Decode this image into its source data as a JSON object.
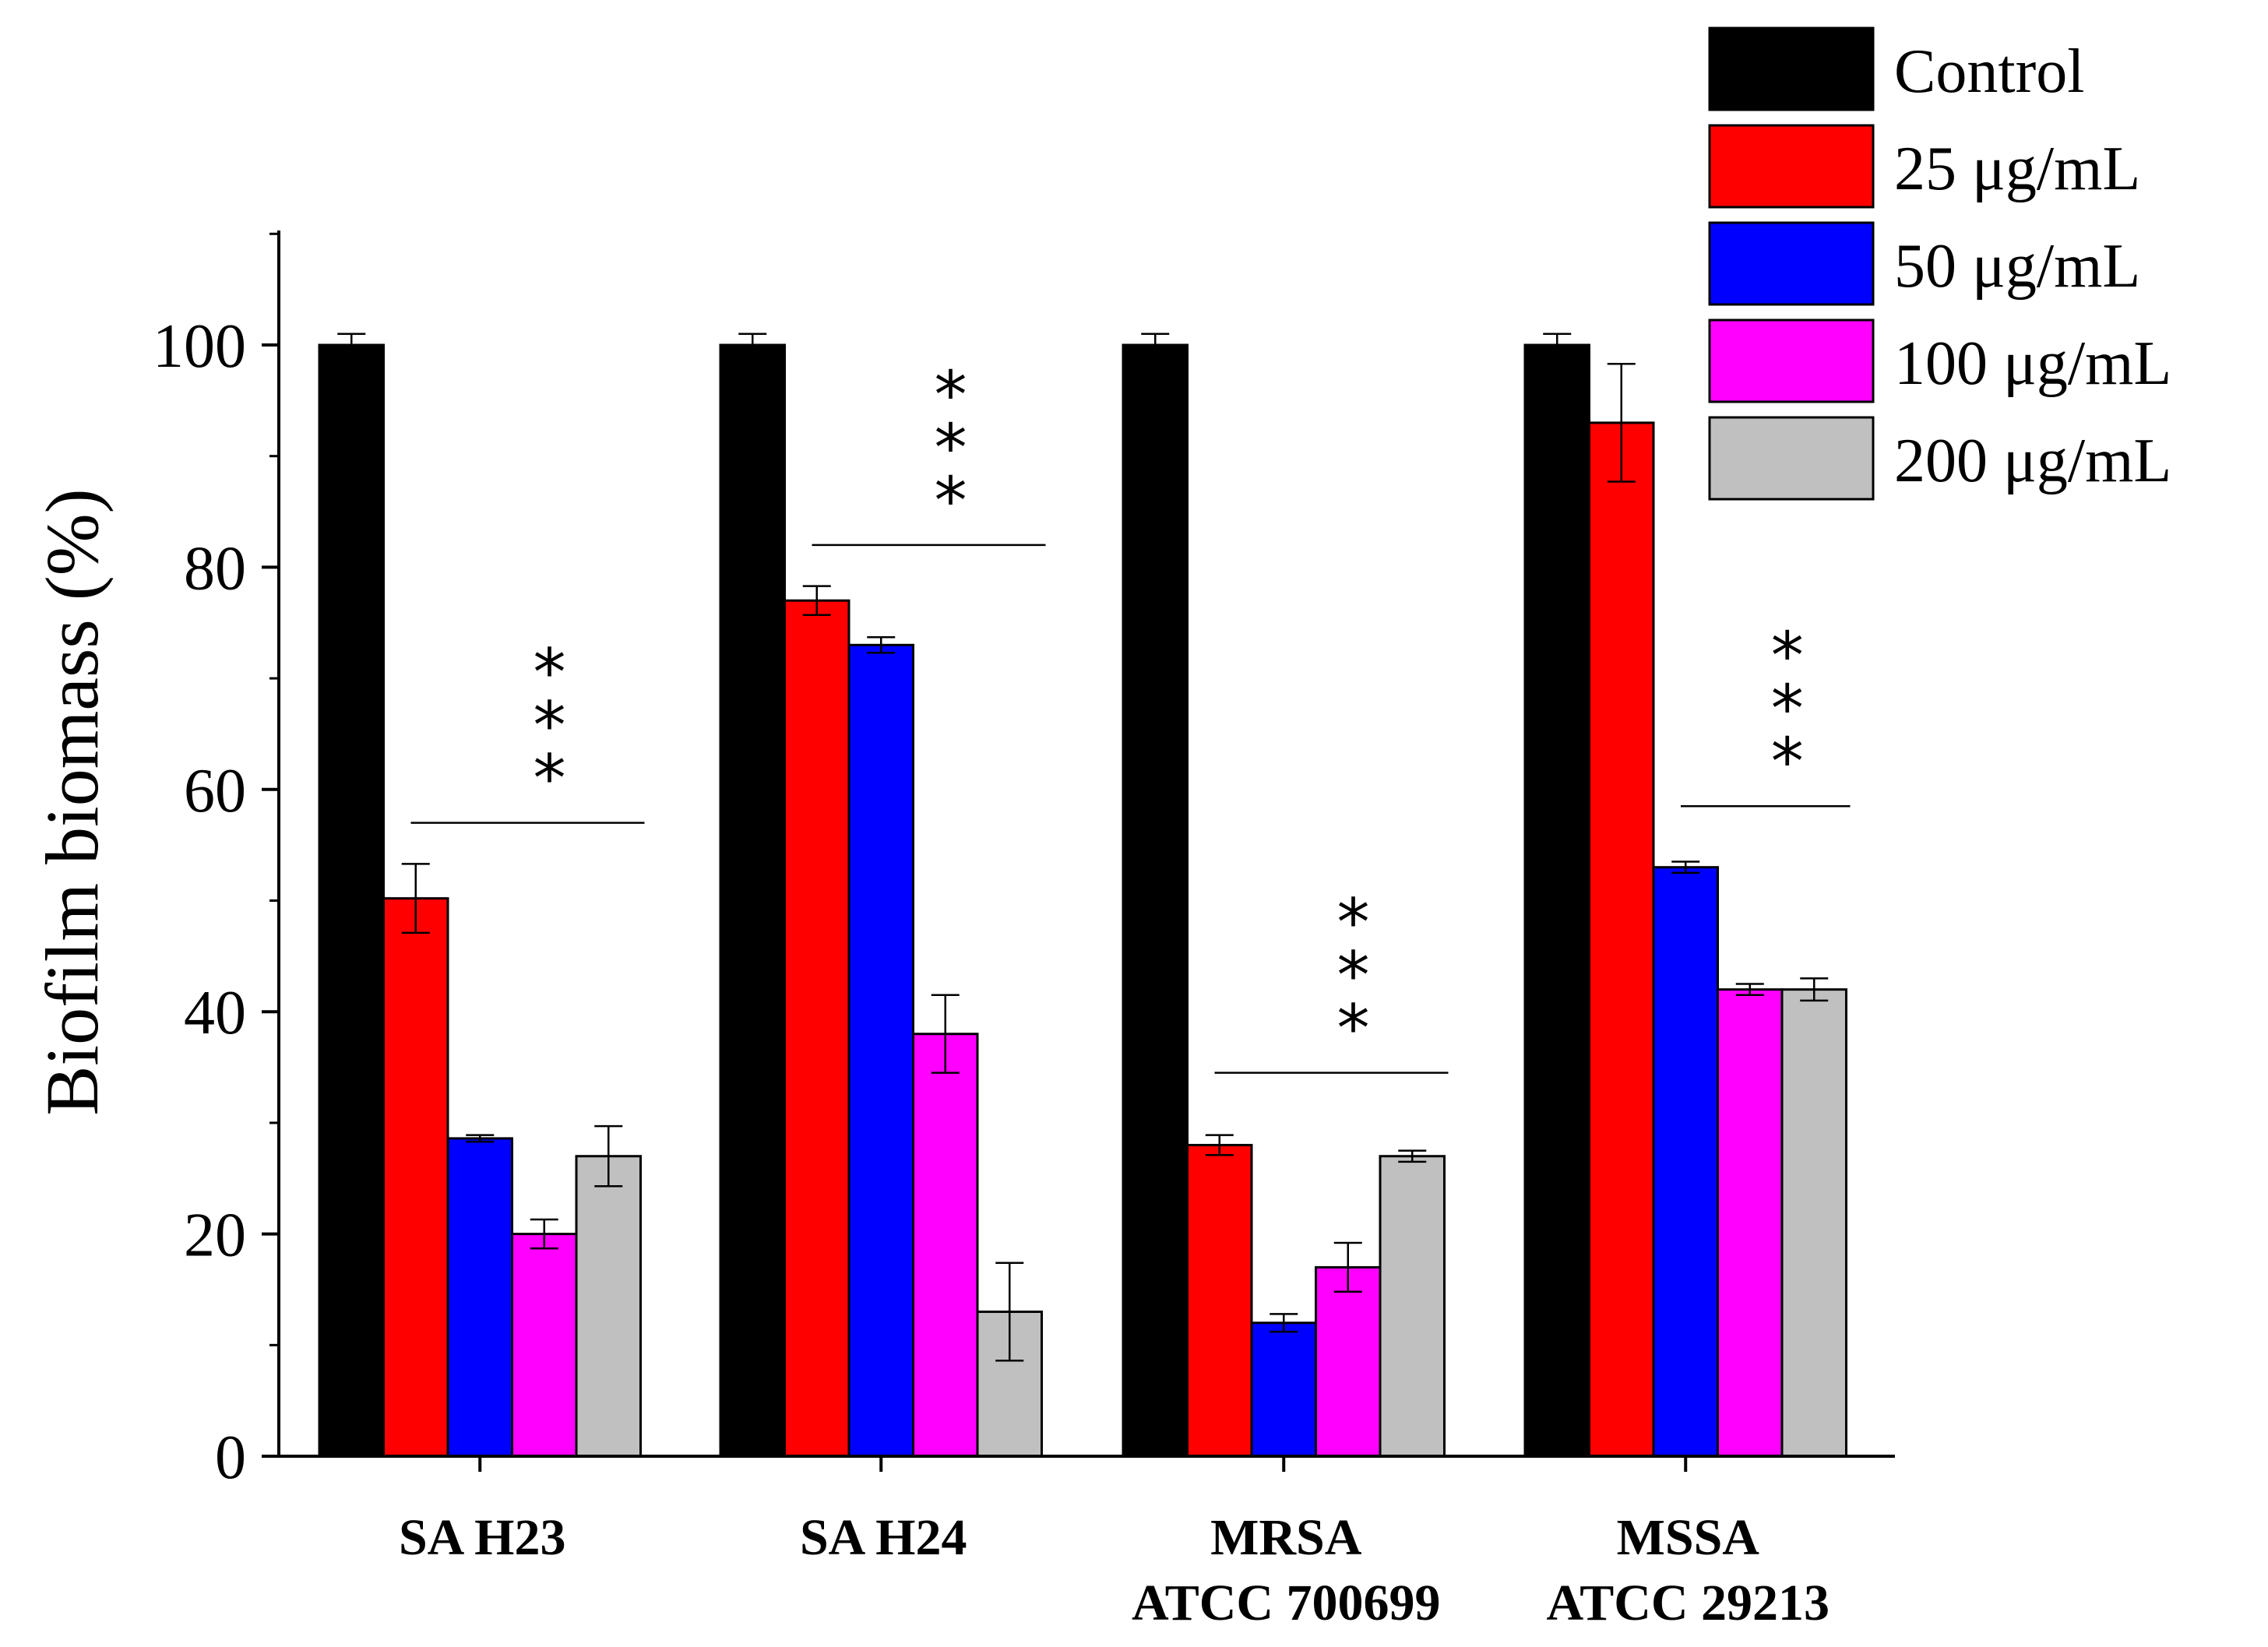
{
  "chart_data": {
    "type": "bar",
    "title": "",
    "xlabel": "",
    "ylabel": "Biofilm biomass (%)",
    "ylim": [
      0,
      110
    ],
    "yticks": [
      0,
      20,
      40,
      60,
      80,
      100
    ],
    "grid": false,
    "legend_position": "top-right",
    "categories": [
      {
        "line1": "SA H23",
        "line2": ""
      },
      {
        "line1": "SA H24",
        "line2": ""
      },
      {
        "line1": "MRSA",
        "line2": "ATCC 700699"
      },
      {
        "line1": "MSSA",
        "line2": "ATCC 29213"
      }
    ],
    "series": [
      {
        "name": "Control",
        "color": "#000000",
        "values": [
          100,
          100,
          100,
          100
        ],
        "errors": [
          1,
          1,
          1,
          1
        ]
      },
      {
        "name": "25 μg/mL",
        "color": "#ff0000",
        "values": [
          50.2,
          77,
          28,
          93
        ],
        "errors": [
          3.1,
          1.3,
          0.9,
          5.3
        ]
      },
      {
        "name": "50 μg/mL",
        "color": "#0000ff",
        "values": [
          28.6,
          73,
          12,
          53
        ],
        "errors": [
          0.3,
          0.7,
          0.8,
          0.5
        ]
      },
      {
        "name": "100 μg/mL",
        "color": "#ff00ff",
        "values": [
          20,
          38,
          17,
          42
        ],
        "errors": [
          1.3,
          3.5,
          2.2,
          0.5
        ]
      },
      {
        "name": "200 μg/mL",
        "color": "#c0c0c0",
        "values": [
          27,
          13,
          27,
          42
        ],
        "errors": [
          2.7,
          4.4,
          0.5,
          1.0
        ]
      }
    ],
    "significance": [
      {
        "label": "***",
        "category": 0,
        "from_series": 1,
        "to_series": 4,
        "level": 57
      },
      {
        "label": "***",
        "category": 1,
        "from_series": 1,
        "to_series": 4,
        "level": 82
      },
      {
        "label": "***",
        "category": 2,
        "from_series": 1,
        "to_series": 4,
        "level": 34.5
      },
      {
        "label": "***",
        "category": 3,
        "from_series": 2,
        "to_series": 4,
        "level": 58.5
      }
    ]
  }
}
